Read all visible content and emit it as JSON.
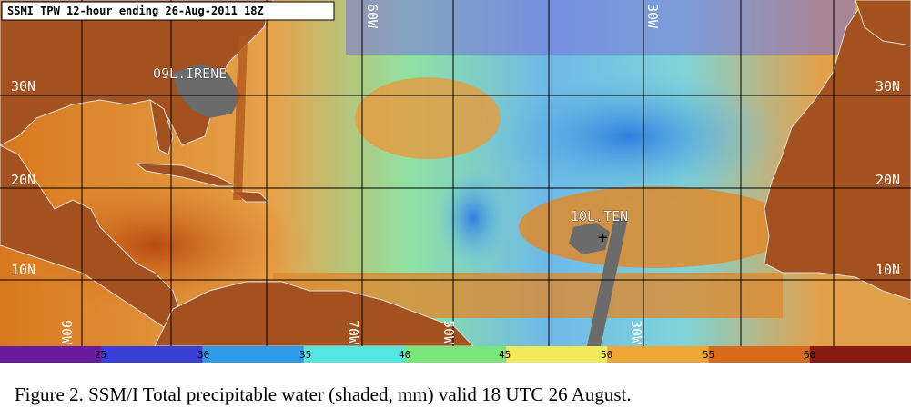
{
  "map": {
    "title": "SSMI TPW 12-hour ending 26-Aug-2011 18Z",
    "lat_labels_left": [
      "30N",
      "20N",
      "10N"
    ],
    "lat_labels_right": [
      "30N",
      "20N",
      "10N"
    ],
    "lon_labels_top": [
      "60W",
      "30W"
    ],
    "lon_labels_bottom": [
      "90W",
      "70W",
      "50W",
      "30W"
    ],
    "storms": [
      {
        "name": "09L.IRENE",
        "lat_lon_text": ""
      },
      {
        "name": "10L.TEN",
        "marker": "+"
      }
    ]
  },
  "colorbar": {
    "ticks": [
      "25",
      "30",
      "35",
      "40",
      "45",
      "50",
      "55",
      "60"
    ],
    "colors": [
      "#6a1a9c",
      "#3a3fd8",
      "#2f9be8",
      "#54e6e0",
      "#7ae67a",
      "#f2ea5a",
      "#f0a636",
      "#d86a1c",
      "#8a1a14"
    ]
  },
  "caption": {
    "text": "Figure 2.  SSM/I Total precipitable water (shaded, mm) valid 18 UTC 26 August."
  },
  "colors": {
    "land": "#a3521f",
    "missing": "#6b6b6b",
    "grid": "#000000",
    "coast": "#dcdcdc"
  }
}
